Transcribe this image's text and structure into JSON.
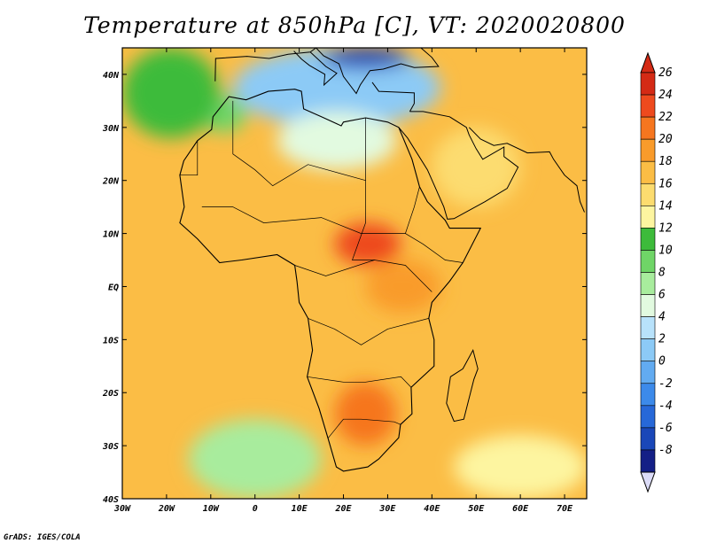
{
  "title": "Temperature at 850hPa [C], VT: 2020020800",
  "footer": "GrADS: IGES/COLA",
  "map": {
    "projection": "latlon",
    "lon_range": [
      -30,
      75
    ],
    "lat_range": [
      -40,
      45
    ],
    "lon_ticks": [
      {
        "lon": -30,
        "label": "30W"
      },
      {
        "lon": -20,
        "label": "20W"
      },
      {
        "lon": -10,
        "label": "10W"
      },
      {
        "lon": 0,
        "label": "0"
      },
      {
        "lon": 10,
        "label": "10E"
      },
      {
        "lon": 20,
        "label": "20E"
      },
      {
        "lon": 30,
        "label": "30E"
      },
      {
        "lon": 40,
        "label": "40E"
      },
      {
        "lon": 50,
        "label": "50E"
      },
      {
        "lon": 60,
        "label": "60E"
      },
      {
        "lon": 70,
        "label": "70E"
      }
    ],
    "lat_ticks": [
      {
        "lat": 40,
        "label": "40N"
      },
      {
        "lat": 30,
        "label": "30N"
      },
      {
        "lat": 20,
        "label": "20N"
      },
      {
        "lat": 10,
        "label": "10N"
      },
      {
        "lat": 0,
        "label": "EQ"
      },
      {
        "lat": -10,
        "label": "10S"
      },
      {
        "lat": -20,
        "label": "20S"
      },
      {
        "lat": -30,
        "label": "30S"
      },
      {
        "lat": -40,
        "label": "40S"
      }
    ],
    "fields": [
      {
        "name": "mediterranean-cold",
        "lon": [
          -5,
          42
        ],
        "lat": [
          30,
          45
        ],
        "temp": 2
      },
      {
        "name": "black-sea-core",
        "lon": [
          15,
          35
        ],
        "lat": [
          41,
          45
        ],
        "temp": -6
      },
      {
        "name": "sahara-cool",
        "lon": [
          5,
          32
        ],
        "lat": [
          22,
          33
        ],
        "temp": 6
      },
      {
        "name": "morocco-cold",
        "lon": [
          -12,
          -2
        ],
        "lat": [
          29,
          36
        ],
        "temp": 10
      },
      {
        "name": "atlantic-north-cool",
        "lon": [
          -30,
          -8
        ],
        "lat": [
          28,
          45
        ],
        "temp": 12
      },
      {
        "name": "arabia-mild",
        "lon": [
          40,
          60
        ],
        "lat": [
          15,
          30
        ],
        "temp": 16
      },
      {
        "name": "central-africa-hot",
        "lon": [
          18,
          33
        ],
        "lat": [
          4,
          12
        ],
        "temp": 24
      },
      {
        "name": "east-africa-warm",
        "lon": [
          25,
          42
        ],
        "lat": [
          -5,
          5
        ],
        "temp": 21
      },
      {
        "name": "southern-africa-warm",
        "lon": [
          18,
          32
        ],
        "lat": [
          -30,
          -18
        ],
        "temp": 22
      },
      {
        "name": "south-atlantic-cool",
        "lon": [
          -15,
          15
        ],
        "lat": [
          -40,
          -25
        ],
        "temp": 8
      },
      {
        "name": "indian-ocean-south-mild",
        "lon": [
          45,
          75
        ],
        "lat": [
          -40,
          -28
        ],
        "temp": 14
      }
    ]
  },
  "colorbar": {
    "levels": [
      {
        "label": "26",
        "color": "#d42a15"
      },
      {
        "label": "24",
        "color": "#ee4a1e"
      },
      {
        "label": "22",
        "color": "#f6761f"
      },
      {
        "label": "20",
        "color": "#f99b2b"
      },
      {
        "label": "18",
        "color": "#fbbd45"
      },
      {
        "label": "16",
        "color": "#fcdc6f"
      },
      {
        "label": "14",
        "color": "#fdf5a0"
      },
      {
        "label": "12",
        "color": "#3dbb3b"
      },
      {
        "label": "10",
        "color": "#6fd567"
      },
      {
        "label": "8",
        "color": "#a8ec9d"
      },
      {
        "label": "6",
        "color": "#e2fae0"
      },
      {
        "label": "4",
        "color": "#b8e2fb"
      },
      {
        "label": "2",
        "color": "#8ccaf6"
      },
      {
        "label": "0",
        "color": "#62abf1"
      },
      {
        "label": "-2",
        "color": "#3c8aea"
      },
      {
        "label": "-4",
        "color": "#2768d8"
      },
      {
        "label": "-6",
        "color": "#1a47b8"
      },
      {
        "label": "-8",
        "color": "#141f86"
      }
    ],
    "top_color": "#d42a15",
    "bottom_color": "#dcdcf8"
  }
}
